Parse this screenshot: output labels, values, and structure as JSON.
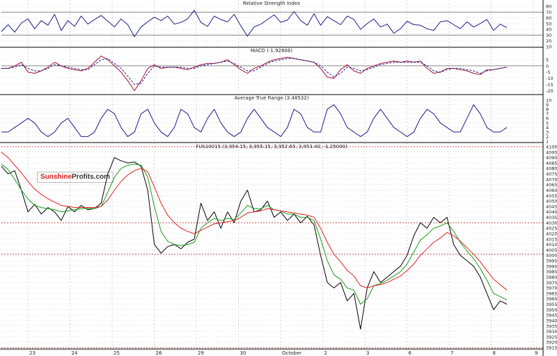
{
  "logo": {
    "part1": "Sunshine",
    "part2": "Profits.com"
  },
  "colors": {
    "rsi": "#1a1a8c",
    "macd": "#a01030",
    "signal": "#1a1a8c",
    "atr": "#1a1a8c",
    "price": "#000000",
    "ma_short": "#1a9a1a",
    "ma_long": "#e02020",
    "level": "#c02020",
    "grid": "#b8b8b8"
  },
  "chart_data": [
    {
      "type": "line",
      "title": "Relative Strength Index",
      "ylim": [
        10,
        80
      ],
      "yticks": [
        80,
        70,
        60,
        50,
        40,
        30,
        20,
        10
      ],
      "levels": [
        70,
        30
      ],
      "series": [
        {
          "values": [
            36,
            48,
            35,
            51,
            58,
            41,
            55,
            47,
            66,
            38,
            55,
            45,
            63,
            49,
            57,
            64,
            54,
            44,
            58,
            48,
            27,
            44,
            53,
            61,
            55,
            63,
            49,
            52,
            58,
            73,
            52,
            45,
            63,
            57,
            53,
            66,
            46,
            28,
            44,
            49,
            57,
            65,
            52,
            56,
            71,
            55,
            47,
            67,
            47,
            62,
            55,
            48,
            63,
            57,
            40,
            50,
            58,
            44,
            49,
            33,
            41,
            54,
            48,
            47,
            41,
            38,
            53,
            55,
            48,
            41,
            53,
            44,
            50,
            57,
            38,
            49,
            43
          ]
        }
      ]
    },
    {
      "type": "line",
      "title": "MACD (-1.92806)",
      "ylim": [
        -22,
        10
      ],
      "yticks": [
        5,
        0,
        -5,
        -10,
        -15,
        -20
      ],
      "levels": [
        0
      ],
      "series": [
        {
          "values": [
            -2,
            -2,
            0,
            3,
            -5,
            -6,
            -4,
            -1,
            3,
            0,
            -2,
            -3,
            -4,
            -2,
            3,
            8,
            5,
            0,
            -5,
            -12,
            -20,
            -12,
            -2,
            1,
            -2,
            -1,
            -1,
            -2,
            -3,
            -1,
            1,
            2,
            2,
            3,
            5,
            1,
            -3,
            -6,
            -2,
            0,
            3,
            5,
            6,
            7,
            6,
            5,
            4,
            3,
            -2,
            -9,
            -10,
            -3,
            1,
            -4,
            -6,
            -2,
            0,
            2,
            3,
            4,
            3,
            4,
            3,
            4,
            -2,
            -6,
            -5,
            -2,
            -2,
            -3,
            -4,
            -6,
            -7,
            -3,
            -3,
            -2,
            -1
          ]
        },
        {
          "values": [
            -2,
            -2,
            -1,
            1,
            -2,
            -4,
            -4,
            -2,
            1,
            0,
            -1,
            -2,
            -3,
            -3,
            1,
            5,
            6,
            2,
            -2,
            -8,
            -15,
            -14,
            -6,
            0,
            -1,
            -1,
            -1,
            -1,
            -2,
            -2,
            0,
            1,
            2,
            3,
            4,
            2,
            -1,
            -4,
            -4,
            -1,
            2,
            4,
            5,
            6,
            6,
            5,
            4,
            3,
            0,
            -5,
            -9,
            -6,
            -1,
            -2,
            -4,
            -3,
            -1,
            1,
            2,
            3,
            3,
            3,
            3,
            3,
            0,
            -4,
            -5,
            -3,
            -2,
            -2,
            -3,
            -4,
            -6,
            -4,
            -3,
            -2,
            -1
          ]
        }
      ]
    },
    {
      "type": "line",
      "title": "Average True Range (3.48532)",
      "ylim": [
        1,
        10
      ],
      "yticks": [
        10,
        9,
        8,
        7,
        6,
        5,
        4,
        3,
        2,
        1
      ],
      "series": [
        {
          "values": [
            3,
            3,
            4,
            5,
            6,
            5,
            3,
            2,
            3,
            5,
            6,
            4,
            2,
            2,
            3,
            6,
            8,
            7,
            4,
            2,
            3,
            7,
            8,
            5,
            3,
            2,
            4,
            8,
            7,
            4,
            3,
            6,
            8,
            5,
            3,
            2,
            3,
            6,
            8,
            6,
            4,
            3,
            2,
            4,
            8,
            7,
            4,
            3,
            3,
            8,
            9,
            7,
            4,
            3,
            2,
            3,
            6,
            8,
            6,
            4,
            3,
            2,
            3,
            6,
            8,
            7,
            5,
            4,
            3,
            3,
            6,
            9,
            7,
            4,
            3,
            3,
            4
          ]
        }
      ]
    },
    {
      "type": "line",
      "title": "FUS10015 (3,954.15, 3,955.15, 3,952.65, 3,953.40, -1.25000)",
      "ylim": [
        3915,
        4100
      ],
      "yticks": [
        4100,
        4095,
        4090,
        4085,
        4080,
        4075,
        4070,
        4065,
        4060,
        4055,
        4050,
        4045,
        4040,
        4035,
        4030,
        4025,
        4020,
        4015,
        4010,
        4005,
        4000,
        3995,
        3990,
        3985,
        3980,
        3975,
        3970,
        3965,
        3960,
        3955,
        3950,
        3945,
        3940,
        3935,
        3930,
        3925,
        3920,
        3915
      ],
      "levels": [
        4100,
        4030,
        4001,
        3915
      ],
      "xlabels": [
        "23",
        "24",
        "25",
        "26",
        "29",
        "30",
        "October",
        "2",
        "3",
        "6",
        "7",
        "8",
        "9"
      ],
      "series": [
        {
          "values": [
            4082,
            4075,
            4078,
            4060,
            4040,
            4047,
            4038,
            4044,
            4040,
            4032,
            4045,
            4040,
            4046,
            4042,
            4043,
            4048,
            4075,
            4090,
            4087,
            4085,
            4086,
            4082,
            4060,
            4010,
            4002,
            4008,
            4010,
            4006,
            4012,
            4015,
            4048,
            4032,
            4040,
            4025,
            4040,
            4030,
            4050,
            4060,
            4040,
            4042,
            4050,
            4035,
            4040,
            4032,
            4038,
            4030,
            4036,
            4028,
            4000,
            3975,
            3970,
            3975,
            3958,
            3965,
            3932,
            3970,
            3985,
            3975,
            3980,
            3985,
            3990,
            4000,
            4018,
            4030,
            4025,
            4035,
            4030,
            4035,
            4010,
            4000,
            3995,
            3990,
            3980,
            3965,
            3950,
            3958,
            3955
          ]
        },
        {
          "values": [
            4084,
            4079,
            4070,
            4060,
            4052,
            4046,
            4044,
            4043,
            4042,
            4040,
            4041,
            4042,
            4043,
            4043,
            4043,
            4045,
            4058,
            4072,
            4080,
            4083,
            4084,
            4083,
            4072,
            4045,
            4022,
            4013,
            4010,
            4009,
            4010,
            4012,
            4025,
            4030,
            4034,
            4032,
            4034,
            4033,
            4039,
            4046,
            4043,
            4043,
            4046,
            4042,
            4041,
            4038,
            4038,
            4035,
            4035,
            4032,
            4015,
            3995,
            3982,
            3978,
            3970,
            3968,
            3955,
            3960,
            3972,
            3974,
            3977,
            3981,
            3985,
            3992,
            4003,
            4014,
            4019,
            4025,
            4027,
            4030,
            4022,
            4012,
            4004,
            3997,
            3988,
            3977,
            3965,
            3962,
            3959
          ]
        },
        {
          "values": [
            4095,
            4090,
            4083,
            4076,
            4068,
            4061,
            4056,
            4052,
            4049,
            4046,
            4045,
            4044,
            4044,
            4044,
            4044,
            4045,
            4051,
            4060,
            4068,
            4074,
            4078,
            4080,
            4077,
            4063,
            4048,
            4037,
            4030,
            4025,
            4022,
            4020,
            4023,
            4026,
            4029,
            4030,
            4031,
            4032,
            4035,
            4039,
            4040,
            4041,
            4043,
            4042,
            4041,
            4040,
            4039,
            4038,
            4037,
            4035,
            4025,
            4012,
            4001,
            3994,
            3986,
            3981,
            3972,
            3970,
            3972,
            3973,
            3975,
            3978,
            3981,
            3986,
            3992,
            4000,
            4006,
            4012,
            4016,
            4021,
            4018,
            4013,
            4007,
            4001,
            3994,
            3986,
            3978,
            3973,
            3968
          ]
        }
      ]
    }
  ]
}
